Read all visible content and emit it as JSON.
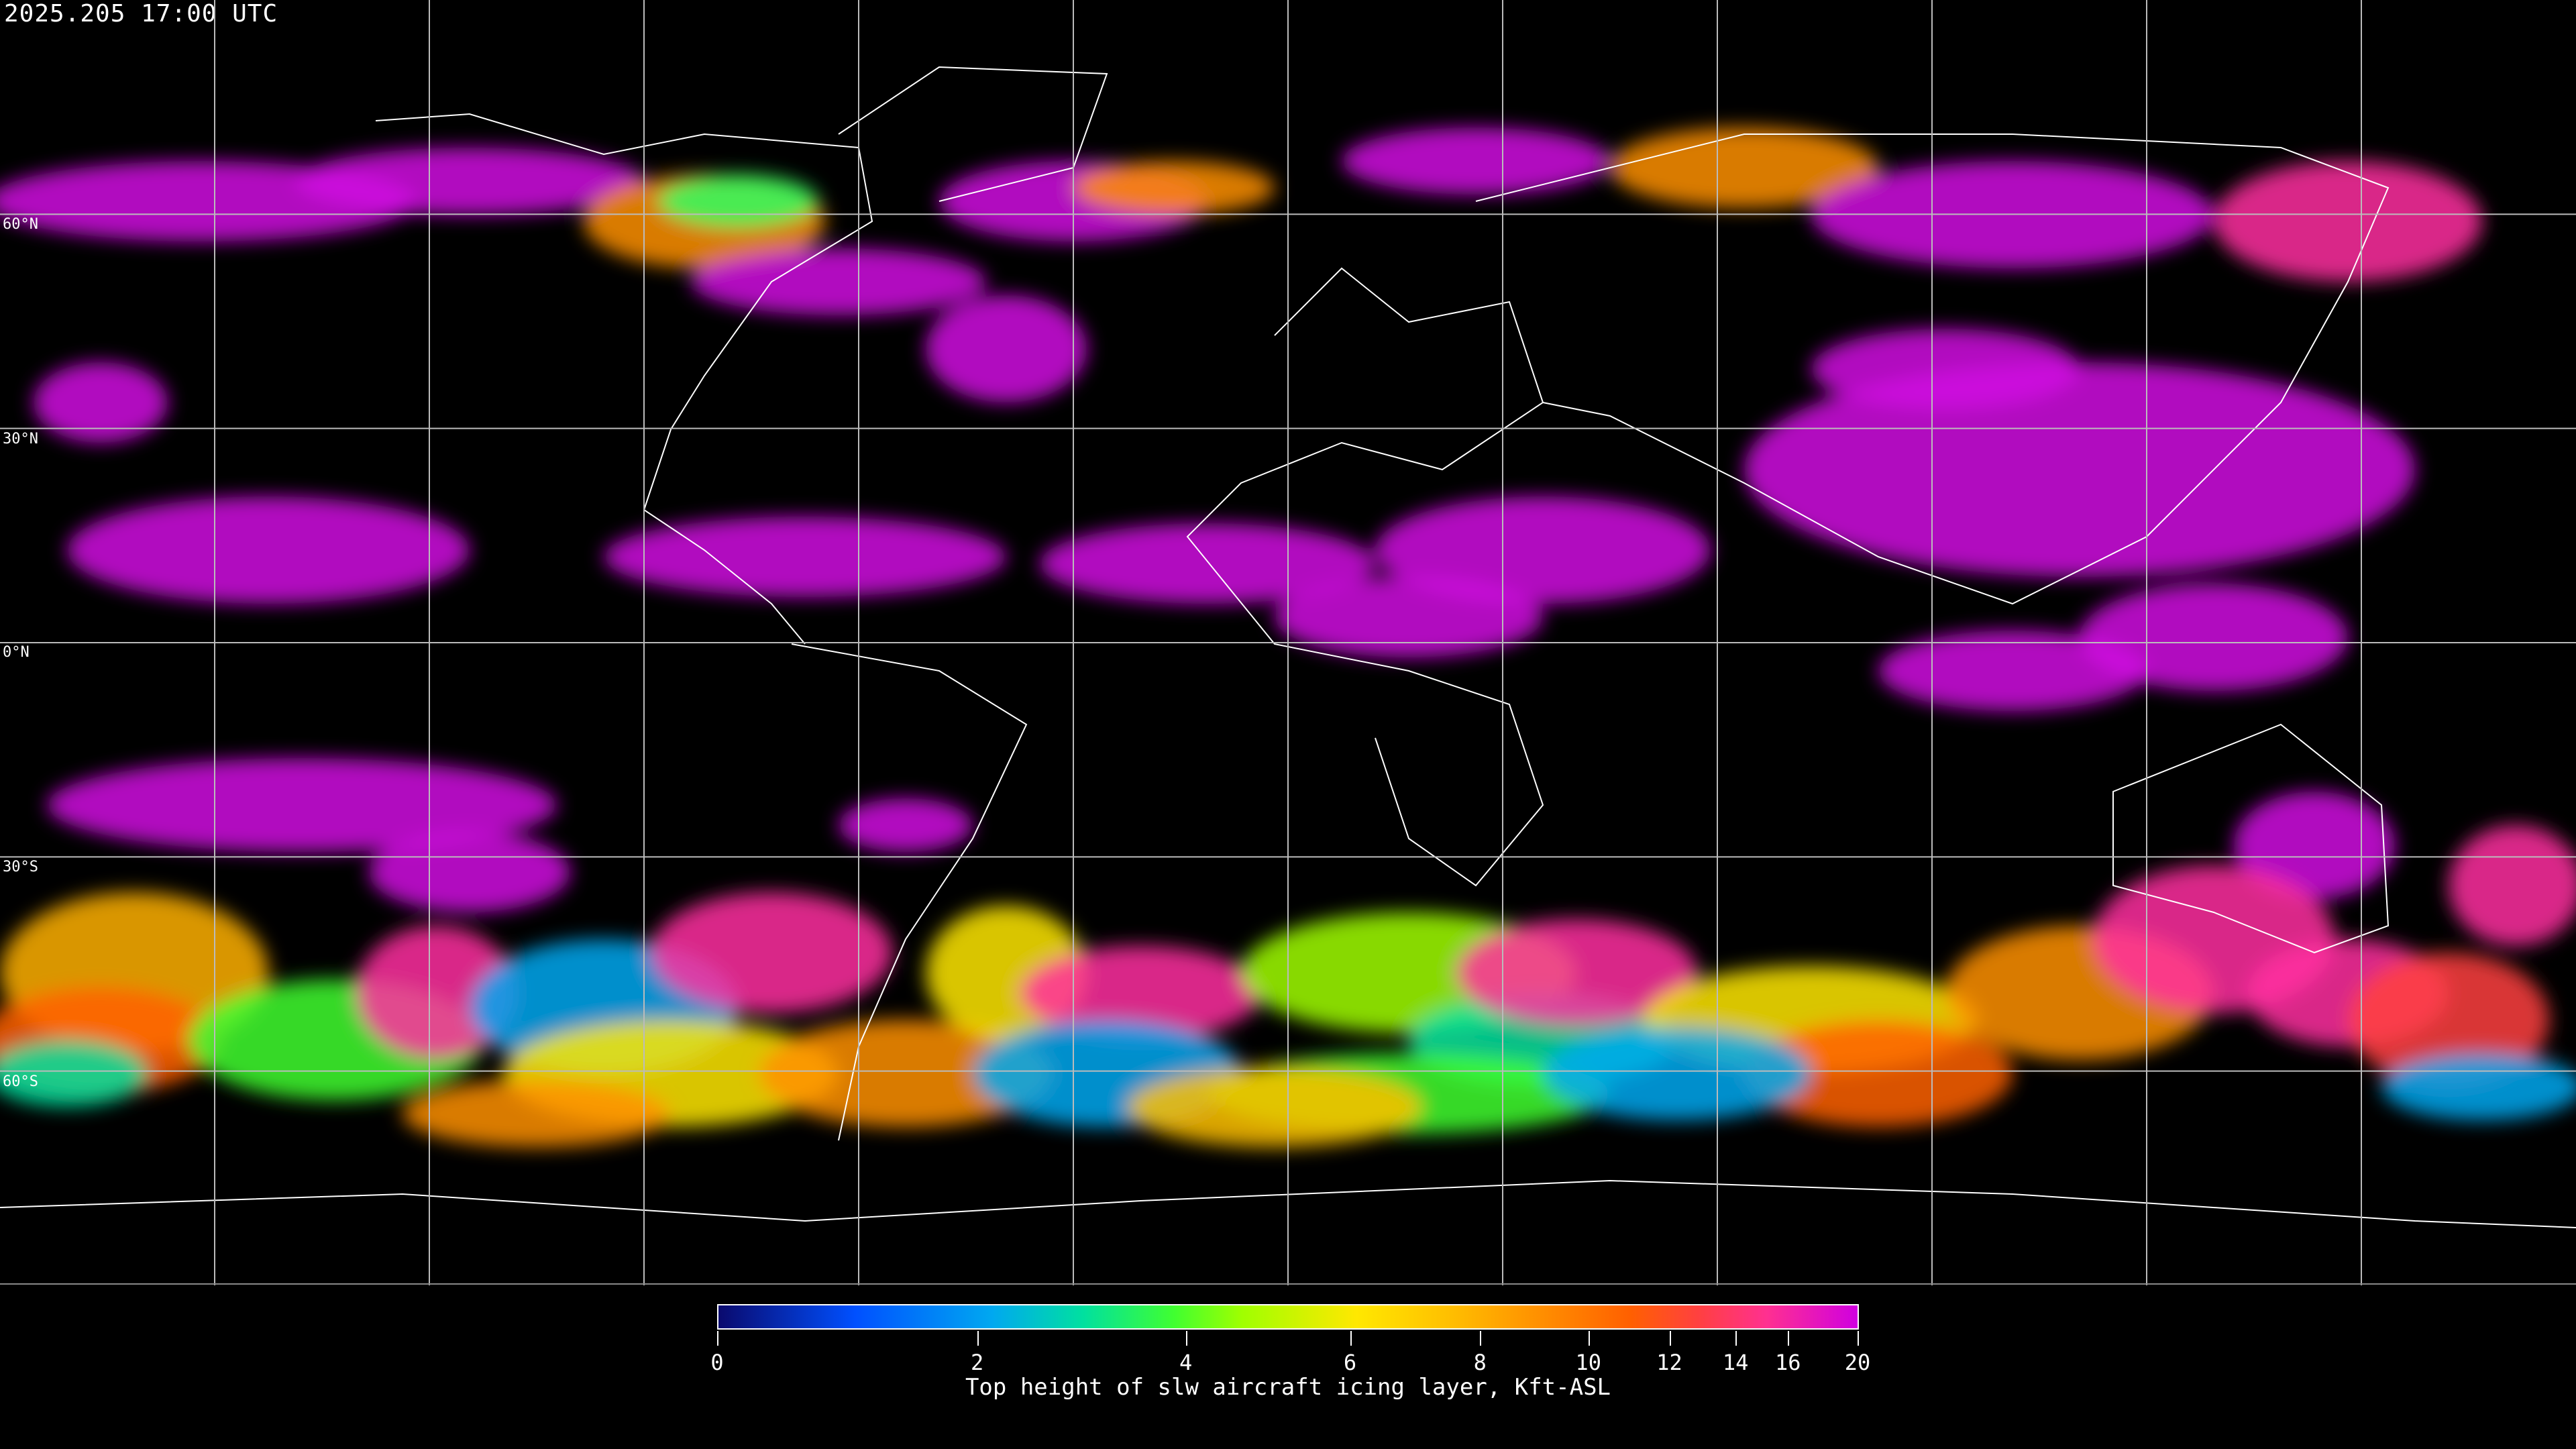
{
  "header": {
    "timestamp": "2025.205 17:00 UTC"
  },
  "map": {
    "projection": "equirectangular",
    "graticule_spacing_deg": 30,
    "lat_labels": [
      "60°N",
      "30°N",
      "0°N",
      "30°S",
      "60°S"
    ],
    "background_color": "#000000",
    "coastline_color": "#ffffff"
  },
  "colorbar": {
    "label": "Top height of slw aircraft icing layer, Kft-ASL",
    "min": 0,
    "max": 20,
    "tick_labels": [
      "0",
      "2",
      "4",
      "6",
      "8",
      "10",
      "12",
      "14",
      "16",
      "20"
    ],
    "colors": [
      "#0a0a6e",
      "#0050ff",
      "#00a8f0",
      "#00e0a0",
      "#40ff30",
      "#a0ff00",
      "#ffe800",
      "#ffc000",
      "#ff9000",
      "#ff6000",
      "#ff4040",
      "#ff3090",
      "#d000e0"
    ]
  }
}
